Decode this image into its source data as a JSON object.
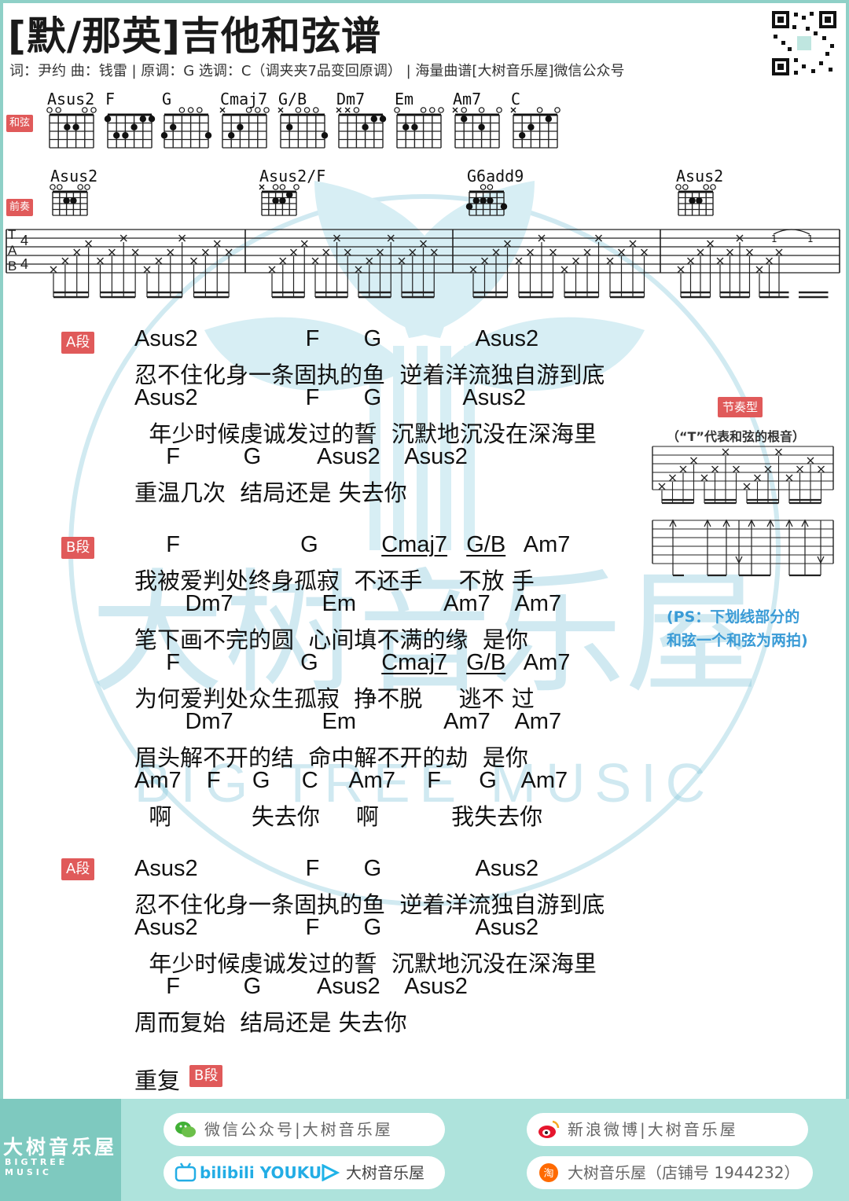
{
  "header": {
    "title": "[默/那英]吉他和弦谱",
    "meta": "词：尹约 曲：钱雷 | 原调：G 选调：C（调夹夹7品变回原调） | 海量曲谱[大树音乐屋]微信公众号"
  },
  "labels": {
    "chords_tag": "和弦",
    "intro_tag": "前奏",
    "rhythm_tag": "节奏型",
    "rhythm_note": "（“T”代表和弦的根音）",
    "ps_line1": "(PS：下划线部分的",
    "ps_line2": "和弦一个和弦为两拍)"
  },
  "chord_diagrams": [
    "Asus2",
    "F",
    "G",
    "Cmaj7",
    "G/B",
    "Dm7",
    "Em",
    "Am7",
    "C"
  ],
  "intro_chords": [
    "Asus2",
    "Asus2/F",
    "G6add9",
    "Asus2"
  ],
  "tab_letters": [
    "T",
    "A",
    "B"
  ],
  "time_sig": "4",
  "sections": {
    "a1": {
      "tag": "A段",
      "lines": [
        {
          "chords": "Asus2                 F       G               Asus2",
          "lyric": "忍不住化身一条固执的鱼  逆着洋流独自游到底"
        },
        {
          "chords": "Asus2                 F       G             Asus2",
          "lyric": "  年少时候虔诚发过的誓  沉默地沉没在深海里"
        },
        {
          "chords": "     F          G         Asus2    Asus2",
          "lyric": "重温几次  结局还是 失去你"
        }
      ]
    },
    "b": {
      "tag": "B段",
      "lines": [
        {
          "c1": "     F                   G          ",
          "u1": "Cmaj7",
          "c2": "   ",
          "u2": "G/B",
          "c3": "   Am7",
          "lyric": "我被爱判处终身孤寂  不还手     不放 手"
        },
        {
          "chords": "        Dm7              Em              Am7    Am7",
          "lyric": "笔下画不完的圆  心间填不满的缘  是你"
        },
        {
          "c1": "     F                   G          ",
          "u1": "Cmaj7",
          "c2": "   ",
          "u2": "G/B",
          "c3": "   Am7",
          "lyric": "为何爱判处众生孤寂  挣不脱     逃不 过"
        },
        {
          "chords": "        Dm7              Em              Am7    Am7",
          "lyric": "眉头解不开的结  命中解不开的劫  是你"
        },
        {
          "chords": "Am7    F     G     C     Am7     F      G    Am7",
          "lyric": "  啊           失去你     啊          我失去你"
        }
      ]
    },
    "a2": {
      "tag": "A段",
      "lines": [
        {
          "chords": "Asus2                 F       G               Asus2",
          "lyric": "忍不住化身一条固执的鱼  逆着洋流独自游到底"
        },
        {
          "chords": "Asus2                 F       G               Asus2",
          "lyric": "  年少时候虔诚发过的誓  沉默地沉没在深海里"
        },
        {
          "chords": "     F          G         Asus2    Asus2",
          "lyric": "周而复始  结局还是 失去你"
        }
      ]
    },
    "repeat": {
      "text": "重复",
      "tag": "B段"
    }
  },
  "watermark": {
    "big": "大树音乐屋",
    "small": "BIG TREE MUSIC"
  },
  "footer": {
    "logo_cn": "大树音乐屋",
    "logo_en": "BIGTREE MUSIC",
    "wechat": "微信公众号|大树音乐屋",
    "weibo": "新浪微博|大树音乐屋",
    "video_brands": "bilibili YOUKU",
    "video": "大树音乐屋",
    "taobao": "大树音乐屋（店铺号 1944232）"
  },
  "colors": {
    "accent": "#e05a5a",
    "teal": "#8fd0c7",
    "blue": "#3a9bd6"
  }
}
